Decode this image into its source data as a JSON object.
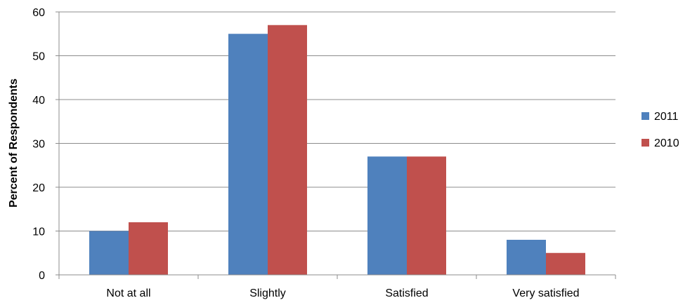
{
  "chart_data": {
    "type": "bar",
    "title": "",
    "xlabel": "",
    "ylabel": "Percent of Respondents",
    "categories": [
      "Not at all",
      "Slightly",
      "Satisfied",
      "Very satisfied"
    ],
    "series": [
      {
        "name": "2011",
        "values": [
          10,
          55,
          27,
          8
        ],
        "color": "#4F81BD"
      },
      {
        "name": "2010",
        "values": [
          12,
          57,
          27,
          5
        ],
        "color": "#C0504D"
      }
    ],
    "ylim": [
      0,
      60
    ],
    "yticks": [
      "0",
      "10",
      "20",
      "30",
      "40",
      "50",
      "60"
    ],
    "grid": true,
    "legend_position": "right"
  }
}
